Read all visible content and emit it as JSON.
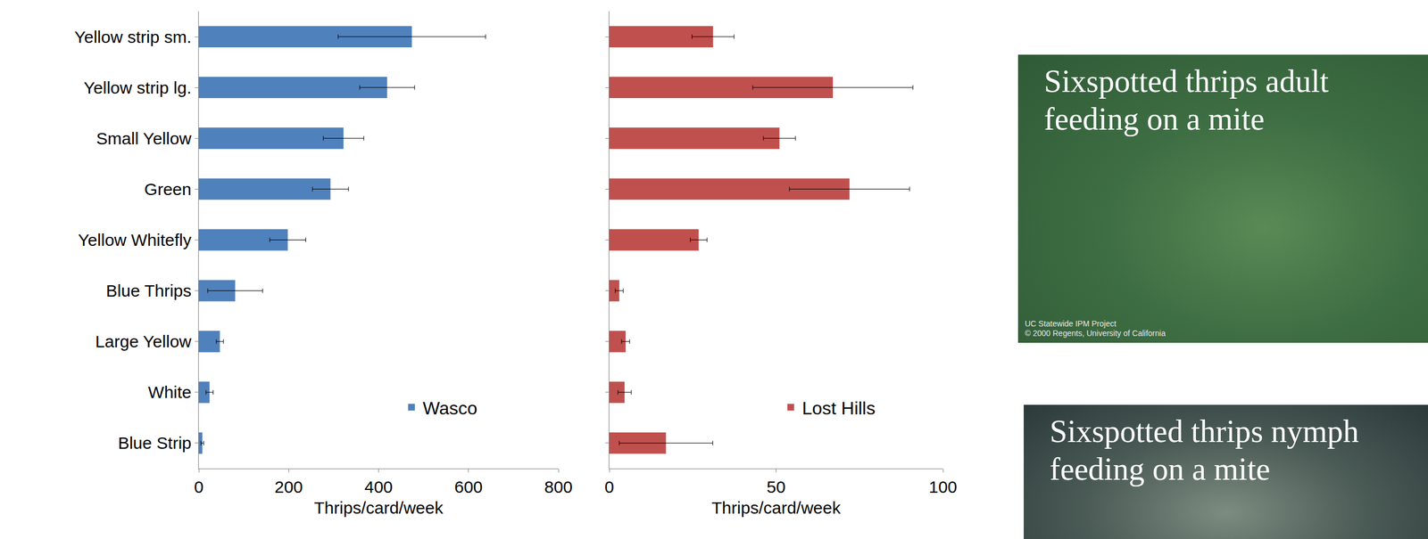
{
  "chart_data": [
    {
      "type": "bar",
      "orientation": "horizontal",
      "categories": [
        "Yellow strip sm.",
        "Yellow strip lg.",
        "Small Yellow",
        "Green",
        "Yellow Whitefly",
        "Blue Thrips",
        "Large Yellow",
        "White",
        "Blue Strip"
      ],
      "series": [
        {
          "name": "Wasco",
          "color": "#4f81bd",
          "values": [
            474,
            419,
            322,
            293,
            198,
            81,
            47,
            24,
            8
          ],
          "error": [
            164,
            61,
            45,
            40,
            40,
            61,
            8,
            8,
            3
          ]
        }
      ],
      "xlabel": "Thrips/card/week",
      "xlim": [
        0,
        800
      ],
      "xticks": [
        0,
        200,
        400,
        600,
        800
      ],
      "grid": false,
      "legend": "lower right"
    },
    {
      "type": "bar",
      "orientation": "horizontal",
      "categories": [
        "Yellow strip sm.",
        "Yellow strip lg.",
        "Small Yellow",
        "Green",
        "Yellow Whitefly",
        "Blue Thrips",
        "Large Yellow",
        "White",
        "Blue Strip"
      ],
      "series": [
        {
          "name": "Lost Hills",
          "color": "#c0504d",
          "values": [
            31.1,
            67,
            51,
            72,
            26.8,
            3,
            4.9,
            4.6,
            17
          ],
          "error": [
            6.3,
            24,
            4.8,
            18,
            2.5,
            1.2,
            1.2,
            2,
            14
          ]
        }
      ],
      "xlabel": "Thrips/card/week",
      "xlim": [
        0,
        100
      ],
      "xticks": [
        0,
        50,
        100
      ],
      "grid": false,
      "legend": "lower right",
      "tick_labels": "x"
    }
  ],
  "photos": [
    {
      "caption": "Sixspotted thrips adult feeding on a mite",
      "credit": [
        "UC Statewide IPM Project",
        "© 2000 Regents, University of California"
      ]
    },
    {
      "caption": "Sixspotted thrips nymph feeding on a mite"
    }
  ]
}
